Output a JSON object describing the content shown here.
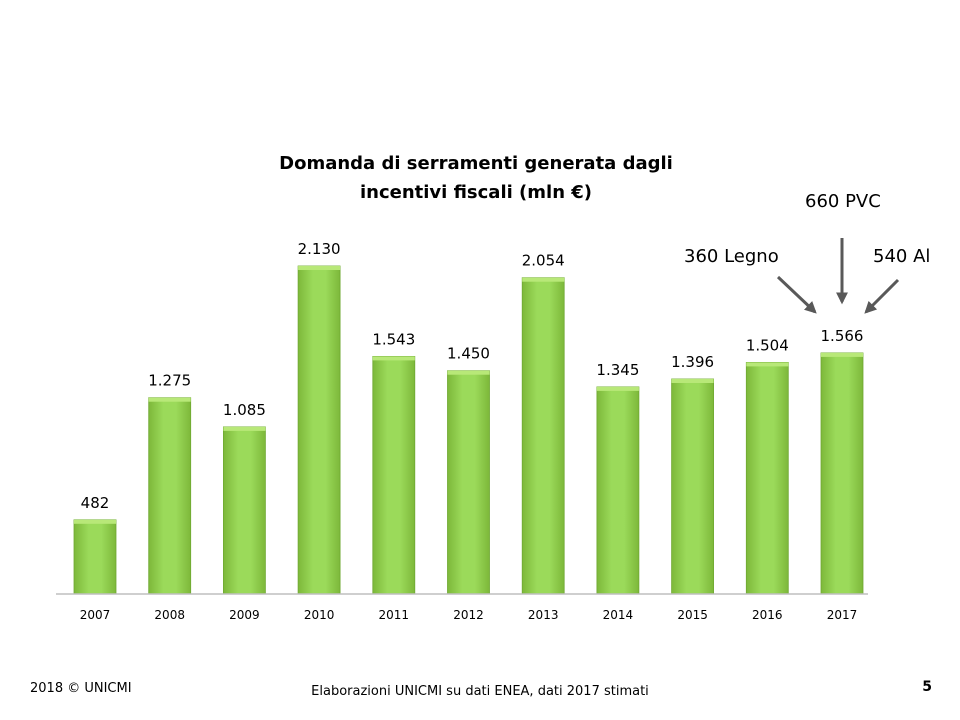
{
  "chart_data": {
    "type": "bar",
    "title": "Domanda di serramenti generata dagli incentivi fiscali (mln €)",
    "title_lines": [
      "Domanda di serramenti generata dagli",
      "incentivi fiscali (mln €)"
    ],
    "categories": [
      "2007",
      "2008",
      "2009",
      "2010",
      "2011",
      "2012",
      "2013",
      "2014",
      "2015",
      "2016",
      "2017"
    ],
    "values": [
      482,
      1275,
      1085,
      2130,
      1543,
      1450,
      2054,
      1345,
      1396,
      1504,
      1566
    ],
    "value_labels": [
      "482",
      "1.275",
      "1.085",
      "2.130",
      "1.543",
      "1.450",
      "2.054",
      "1.345",
      "1.396",
      "1.504",
      "1.566"
    ],
    "xlabel": "",
    "ylabel": "",
    "ylim": [
      0,
      2400
    ],
    "grid": false,
    "legend": "none",
    "bar_color": "#92D050",
    "annotations": [
      {
        "text": "360 Legno",
        "target": "2017"
      },
      {
        "text": "660 PVC",
        "target": "2017"
      },
      {
        "text": "540 Al",
        "target": "2017"
      }
    ]
  },
  "footer": {
    "copyright": "2018 © UNICMI",
    "source": "Elaborazioni UNICMI su dati ENEA, dati 2017 stimati",
    "page_number": "5"
  }
}
